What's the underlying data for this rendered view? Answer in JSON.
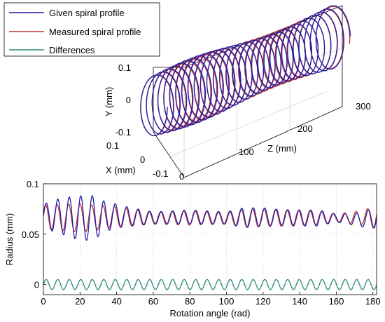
{
  "colors": {
    "given": "#1f1fa8",
    "measured": "#c8322a",
    "differences": "#2a8a78",
    "grid": "#c8c8c8",
    "axis": "#000000"
  },
  "chart_data": [
    {
      "type": "line3d",
      "xlabel": "X (mm)",
      "ylabel": "Y (mm)",
      "zlabel": "Z (mm)",
      "xlim": [
        -0.1,
        0.1
      ],
      "ylim": [
        -0.1,
        0.1
      ],
      "zlim": [
        0,
        300
      ],
      "x_ticks": [
        "0.1",
        "0",
        "-0.1"
      ],
      "y_ticks": [
        "0.1",
        "0",
        "-0.1"
      ],
      "z_ticks": [
        "0",
        "100",
        "200",
        "300"
      ],
      "grid": true,
      "legend_position": "top-left",
      "turns": 30,
      "series": [
        {
          "name": "Given spiral profile",
          "color_key": "given"
        },
        {
          "name": "Measured spiral profile",
          "color_key": "measured"
        },
        {
          "name": "Differences",
          "color_key": "differences"
        }
      ]
    },
    {
      "type": "line",
      "xlabel": "Rotation angle (rad)",
      "ylabel": "Radius (mm)",
      "xlim": [
        0,
        182
      ],
      "ylim": [
        -0.01,
        0.1
      ],
      "x_ticks": [
        "0",
        "20",
        "40",
        "60",
        "80",
        "100",
        "120",
        "140",
        "160",
        "180"
      ],
      "y_ticks": [
        "0.1",
        "0.05",
        "0"
      ],
      "grid": true,
      "series": [
        {
          "name": "Given spiral profile",
          "color_key": "given",
          "base": [
            [
              0,
              0.068
            ],
            [
              10,
              0.068
            ],
            [
              20,
              0.066
            ],
            [
              25,
              0.066
            ],
            [
              40,
              0.068
            ],
            [
              60,
              0.066
            ],
            [
              80,
              0.067
            ],
            [
              100,
              0.066
            ],
            [
              120,
              0.067
            ],
            [
              140,
              0.066
            ],
            [
              160,
              0.066
            ],
            [
              175,
              0.064
            ],
            [
              182,
              0.068
            ]
          ],
          "amplitude": [
            [
              0,
              0.012
            ],
            [
              10,
              0.018
            ],
            [
              20,
              0.022
            ],
            [
              27,
              0.022
            ],
            [
              35,
              0.014
            ],
            [
              45,
              0.01
            ],
            [
              60,
              0.006
            ],
            [
              80,
              0.007
            ],
            [
              100,
              0.006
            ],
            [
              110,
              0.01
            ],
            [
              130,
              0.008
            ],
            [
              150,
              0.008
            ],
            [
              160,
              0.004
            ],
            [
              175,
              0.007
            ],
            [
              182,
              0.012
            ]
          ]
        },
        {
          "name": "Measured spiral profile",
          "color_key": "measured",
          "base": [
            [
              0,
              0.067
            ],
            [
              20,
              0.066
            ],
            [
              40,
              0.067
            ],
            [
              60,
              0.066
            ],
            [
              80,
              0.066
            ],
            [
              100,
              0.066
            ],
            [
              120,
              0.066
            ],
            [
              140,
              0.066
            ],
            [
              160,
              0.066
            ],
            [
              182,
              0.067
            ]
          ],
          "amplitude": [
            [
              0,
              0.012
            ],
            [
              10,
              0.013
            ],
            [
              20,
              0.014
            ],
            [
              40,
              0.01
            ],
            [
              60,
              0.006
            ],
            [
              80,
              0.007
            ],
            [
              100,
              0.006
            ],
            [
              110,
              0.009
            ],
            [
              130,
              0.008
            ],
            [
              150,
              0.007
            ],
            [
              160,
              0.004
            ],
            [
              175,
              0.007
            ],
            [
              182,
              0.012
            ]
          ]
        },
        {
          "name": "Differences",
          "color_key": "differences",
          "base": [
            [
              0,
              0.0
            ],
            [
              182,
              0.0
            ]
          ],
          "amplitude": [
            [
              0,
              0.005
            ],
            [
              182,
              0.005
            ]
          ]
        }
      ],
      "oscillation_period_rad": 6.28
    }
  ]
}
